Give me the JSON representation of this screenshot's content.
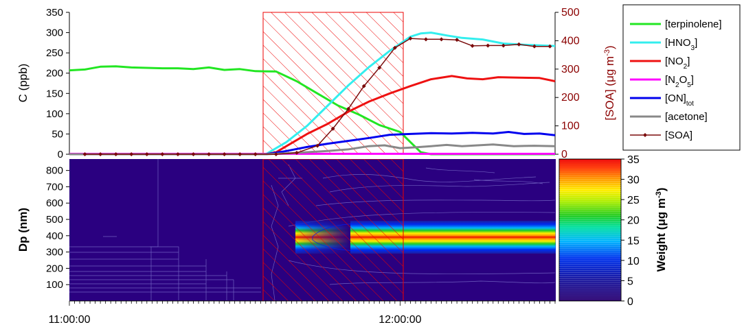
{
  "chart_data": [
    {
      "type": "line",
      "panel": "concentrations",
      "ylabel": "C (ppb)",
      "ylim": [
        0,
        350
      ],
      "yticks": [
        "0",
        "50",
        "100",
        "150",
        "200",
        "250",
        "300",
        "350"
      ],
      "y2label": "[SOA] (μg m-3)",
      "y2label_parts": {
        "main": "[SOA] (μg m",
        "sup": "-3",
        "end": ")"
      },
      "y2lim": [
        0,
        500
      ],
      "y2ticks": [
        "0",
        "100",
        "200",
        "300",
        "400",
        "500"
      ],
      "xlim_minutes": [
        0,
        94
      ],
      "shaded_interval_minutes": [
        38,
        65
      ],
      "legend_position": "right",
      "series": [
        {
          "name": "[terpinolene]",
          "label_main": "[terpinolene]",
          "label_sub": "",
          "label_end": "",
          "color": "#22e622",
          "axis": "left",
          "points": [
            [
              0,
              207
            ],
            [
              3,
              209
            ],
            [
              6,
              216
            ],
            [
              9,
              217
            ],
            [
              12,
              214
            ],
            [
              15,
              213
            ],
            [
              18,
              212
            ],
            [
              21,
              212
            ],
            [
              24,
              210
            ],
            [
              27,
              214
            ],
            [
              30,
              208
            ],
            [
              33,
              210
            ],
            [
              36,
              205
            ],
            [
              40,
              204
            ],
            [
              44,
              180
            ],
            [
              48,
              150
            ],
            [
              52,
              120
            ],
            [
              56,
              98
            ],
            [
              60,
              72
            ],
            [
              64,
              55
            ],
            [
              66,
              30
            ],
            [
              68,
              5
            ],
            [
              70,
              0
            ],
            [
              94,
              0
            ]
          ]
        },
        {
          "name": "[HNO3]",
          "label_main": "[HNO",
          "label_sub": "3",
          "label_end": "]",
          "color": "#33eeee",
          "axis": "left",
          "points": [
            [
              0,
              0
            ],
            [
              38,
              0
            ],
            [
              42,
              30
            ],
            [
              46,
              70
            ],
            [
              50,
              120
            ],
            [
              54,
              170
            ],
            [
              58,
              215
            ],
            [
              62,
              255
            ],
            [
              66,
              290
            ],
            [
              68,
              298
            ],
            [
              70,
              300
            ],
            [
              73,
              293
            ],
            [
              76,
              287
            ],
            [
              80,
              283
            ],
            [
              84,
              273
            ],
            [
              88,
              270
            ],
            [
              94,
              267
            ]
          ]
        },
        {
          "name": "[NO2]",
          "label_main": "[NO",
          "label_sub": "2",
          "label_end": "]",
          "color": "#ee1111",
          "axis": "left",
          "points": [
            [
              0,
              0
            ],
            [
              38,
              0
            ],
            [
              40,
              5
            ],
            [
              42,
              20
            ],
            [
              46,
              50
            ],
            [
              50,
              75
            ],
            [
              54,
              105
            ],
            [
              58,
              130
            ],
            [
              62,
              150
            ],
            [
              66,
              168
            ],
            [
              70,
              185
            ],
            [
              74,
              193
            ],
            [
              77,
              187
            ],
            [
              80,
              185
            ],
            [
              83,
              190
            ],
            [
              87,
              189
            ],
            [
              91,
              188
            ],
            [
              94,
              180
            ]
          ]
        },
        {
          "name": "[N2O5]",
          "label_main": "[N",
          "label_sub": "2",
          "label_end": "O5]",
          "label_sub2": "5",
          "color": "#ff00ff",
          "axis": "left",
          "points": [
            [
              0,
              1
            ],
            [
              94,
              1
            ]
          ]
        },
        {
          "name": "[ON]tot",
          "label_main": "[ON]",
          "label_sub": "tot",
          "label_end": "",
          "color": "#0000ee",
          "axis": "left",
          "points": [
            [
              0,
              0
            ],
            [
              38,
              0
            ],
            [
              42,
              8
            ],
            [
              46,
              18
            ],
            [
              50,
              26
            ],
            [
              54,
              33
            ],
            [
              58,
              40
            ],
            [
              62,
              48
            ],
            [
              66,
              50
            ],
            [
              70,
              52
            ],
            [
              74,
              51
            ],
            [
              78,
              53
            ],
            [
              82,
              51
            ],
            [
              85,
              55
            ],
            [
              88,
              50
            ],
            [
              91,
              51
            ],
            [
              94,
              47
            ]
          ]
        },
        {
          "name": "[acetone]",
          "label_main": "[acetone]",
          "label_sub": "",
          "label_end": "",
          "color": "#888888",
          "axis": "left",
          "points": [
            [
              0,
              0
            ],
            [
              38,
              0
            ],
            [
              42,
              2
            ],
            [
              46,
              5
            ],
            [
              50,
              8
            ],
            [
              54,
              12
            ],
            [
              58,
              20
            ],
            [
              61,
              22
            ],
            [
              64,
              15
            ],
            [
              67,
              17
            ],
            [
              70,
              20
            ],
            [
              73,
              23
            ],
            [
              76,
              20
            ],
            [
              79,
              22
            ],
            [
              82,
              24
            ],
            [
              86,
              20
            ],
            [
              90,
              21
            ],
            [
              94,
              20
            ]
          ]
        },
        {
          "name": "[SOA]",
          "label_main": "[SOA]",
          "label_sub": "",
          "label_end": "",
          "color": "#7a0a0a",
          "axis": "right",
          "markers": true,
          "points": [
            [
              3,
              0
            ],
            [
              6,
              0
            ],
            [
              9,
              0
            ],
            [
              12,
              0
            ],
            [
              15,
              0
            ],
            [
              18,
              0
            ],
            [
              21,
              0
            ],
            [
              24,
              0
            ],
            [
              27,
              0
            ],
            [
              30,
              0
            ],
            [
              33,
              0
            ],
            [
              36,
              0
            ],
            [
              40,
              0
            ],
            [
              44,
              5
            ],
            [
              48,
              30
            ],
            [
              51,
              90
            ],
            [
              54,
              160
            ],
            [
              57,
              240
            ],
            [
              60,
              305
            ],
            [
              63,
              375
            ],
            [
              66,
              408
            ],
            [
              69,
              405
            ],
            [
              72,
              405
            ],
            [
              75,
              403
            ],
            [
              78,
              382
            ],
            [
              81,
              383
            ],
            [
              84,
              383
            ],
            [
              87,
              387
            ],
            [
              90,
              380
            ],
            [
              93,
              380
            ]
          ]
        }
      ]
    },
    {
      "type": "heatmap",
      "panel": "size-distribution",
      "ylabel": "Dp (nm)",
      "ylim": [
        0,
        870
      ],
      "yticks": [
        "100",
        "200",
        "300",
        "400",
        "500",
        "600",
        "700",
        "800"
      ],
      "x_tick_labels": [
        {
          "label": "11:00:00",
          "minute": 0
        },
        {
          "label": "12:00:00",
          "minute": 64
        }
      ],
      "mode_center_nm": 400,
      "mode_width_nm": 70,
      "colorbar_label": "Weight (μg m-3)",
      "colorbar_label_parts": {
        "main": "Weight (μg m",
        "sup": "-3",
        "end": ")"
      },
      "colorbar_range": [
        0,
        35
      ],
      "colorbar_ticks": [
        "0",
        "5",
        "10",
        "15",
        "20",
        "25",
        "30",
        "35"
      ]
    }
  ]
}
